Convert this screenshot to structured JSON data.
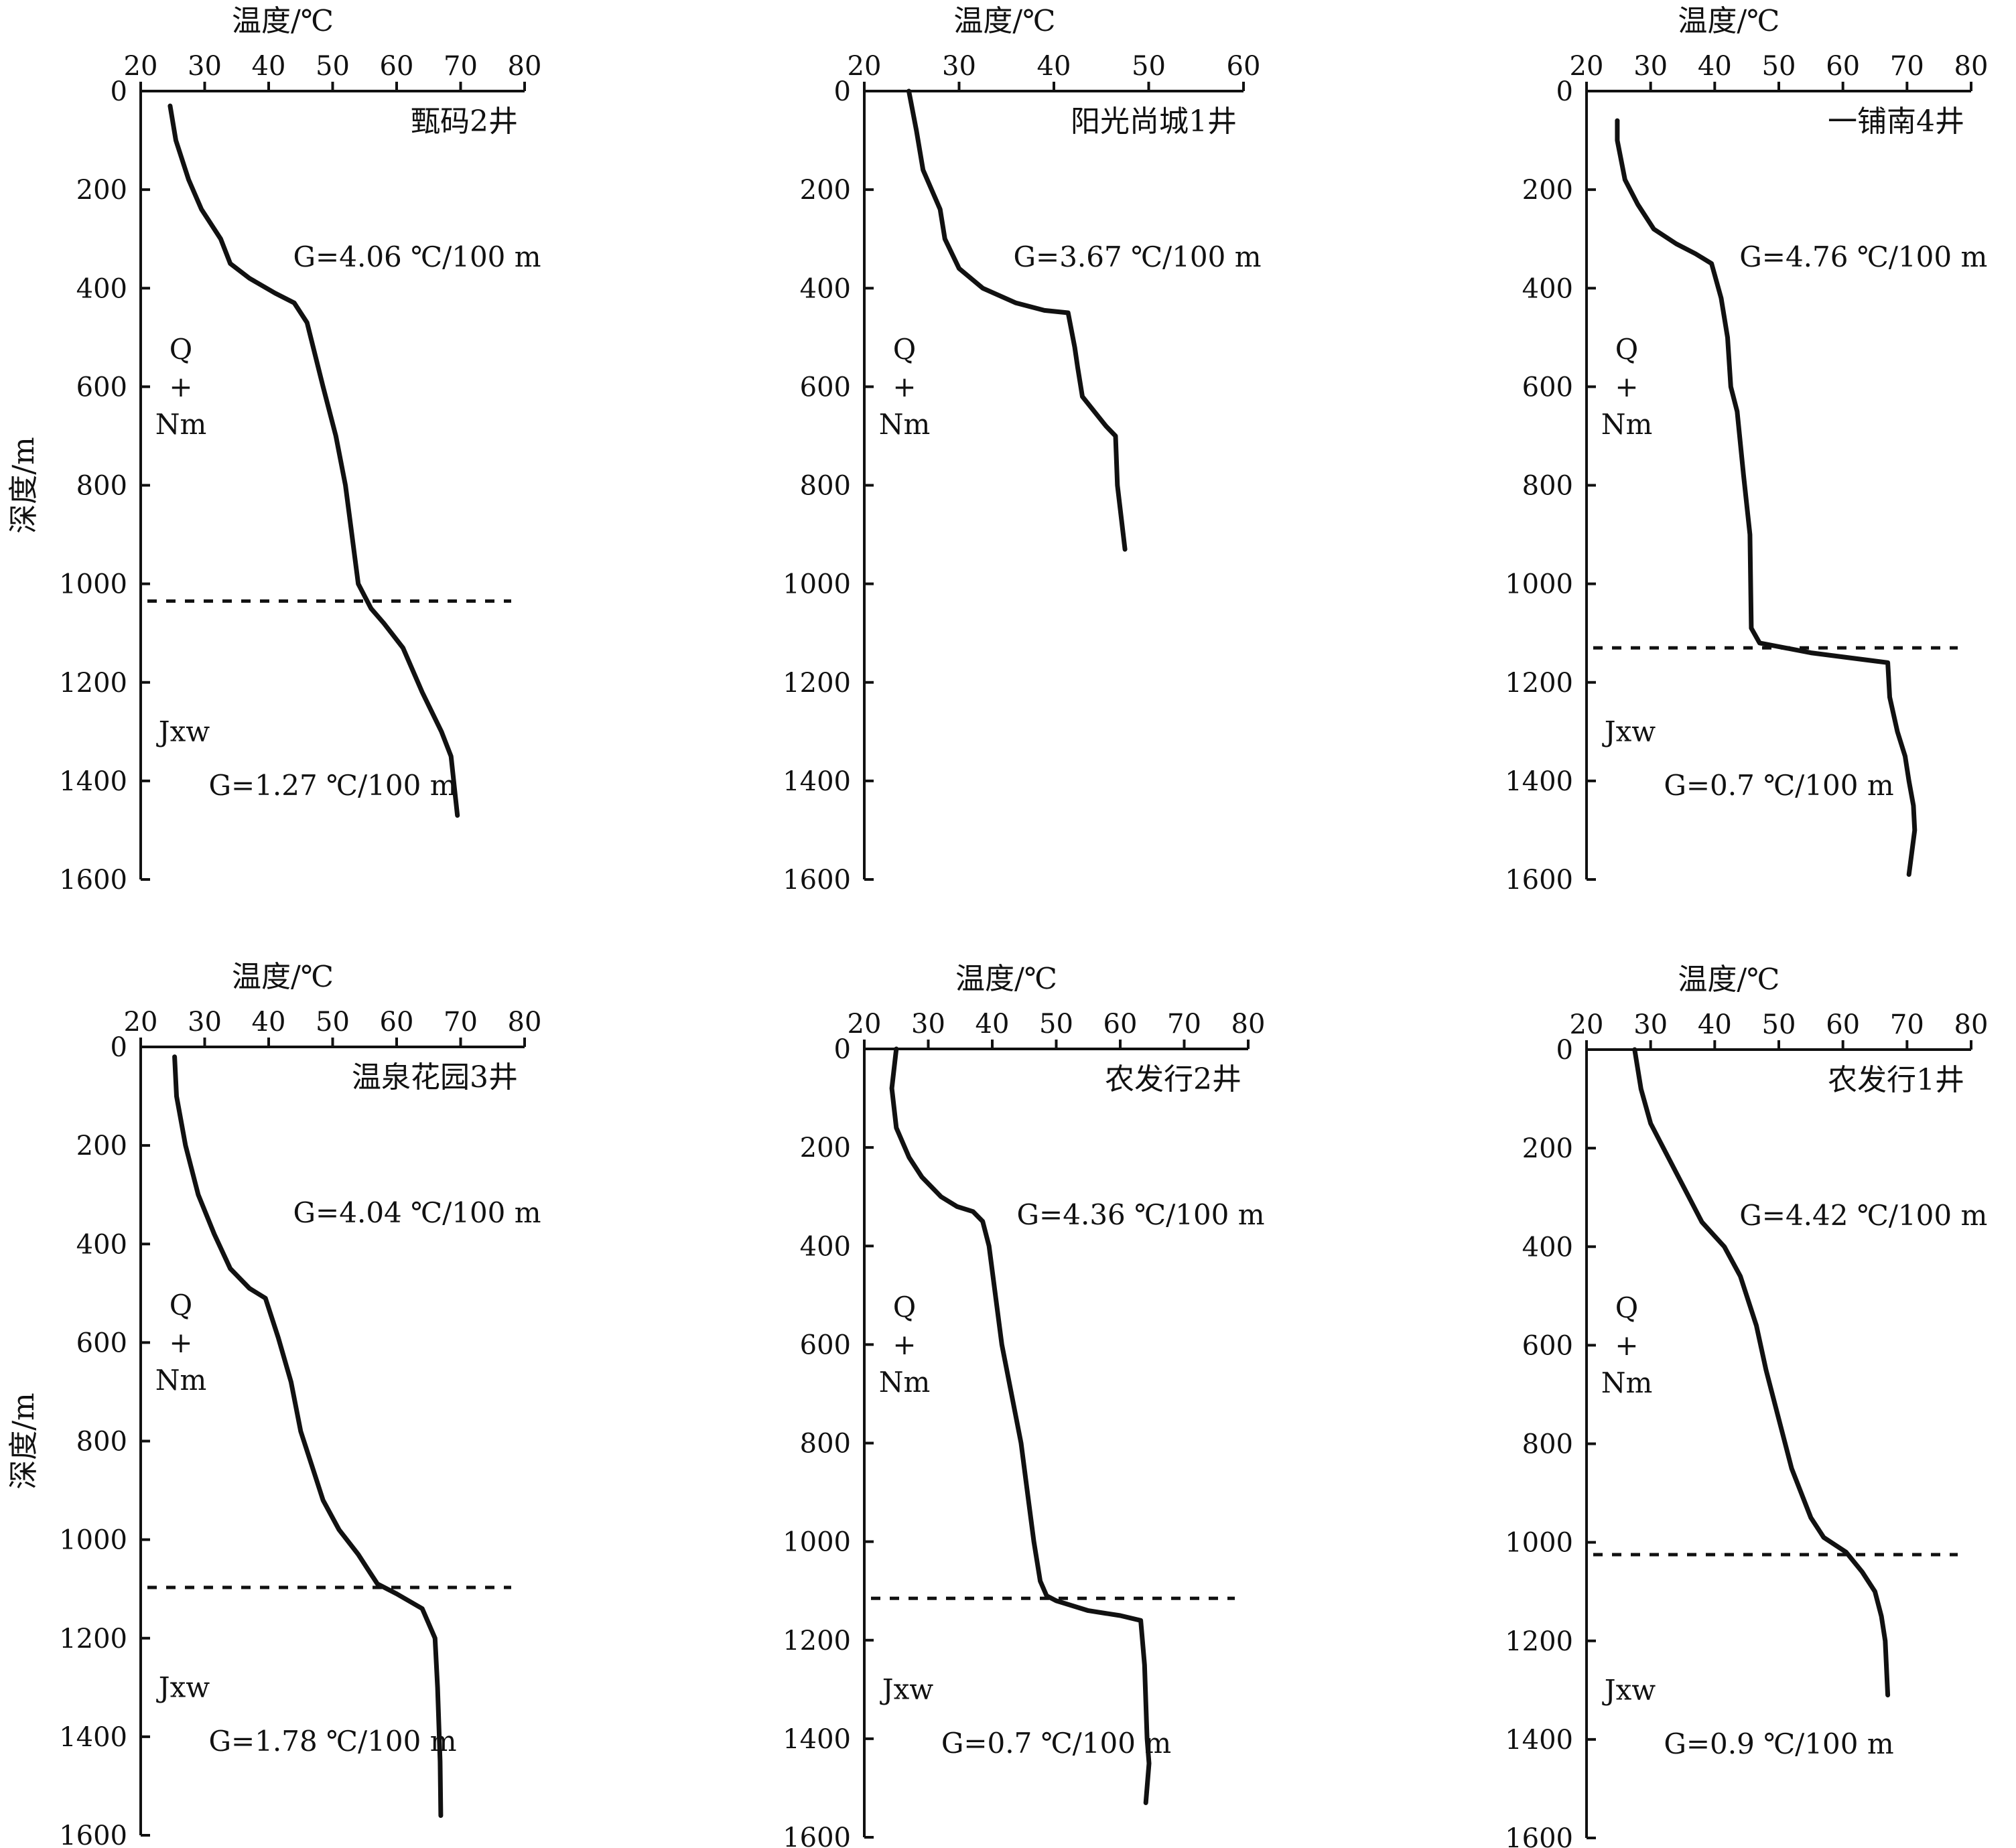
{
  "colors": {
    "ink": "#111111",
    "background": "#ffffff"
  },
  "chart_data": [
    {
      "type": "line",
      "title": "甄码2井",
      "xlabel": "温度/℃",
      "ylabel": "深度/m",
      "xlim": [
        20,
        80
      ],
      "ylim": [
        0,
        1600
      ],
      "x_ticks": [
        "20",
        "30",
        "40",
        "50",
        "60",
        "70",
        "80"
      ],
      "y_ticks": [
        "0",
        "200",
        "400",
        "600",
        "800",
        "1000",
        "1200",
        "1400",
        "1600"
      ],
      "grid": false,
      "x": [
        24.6,
        25.5,
        27.5,
        29.5,
        32.5,
        34,
        37,
        41,
        44,
        46,
        48.5,
        50.5,
        52,
        53,
        54,
        56,
        58,
        61,
        64,
        67,
        68.5,
        69.5
      ],
      "y": [
        30,
        100,
        180,
        240,
        300,
        350,
        380,
        410,
        430,
        470,
        600,
        700,
        800,
        900,
        1000,
        1050,
        1080,
        1130,
        1220,
        1300,
        1350,
        1470
      ],
      "boundary_depth": 1035,
      "upper_unit": [
        "Q",
        "+",
        "Nm"
      ],
      "lower_unit": "Jxw",
      "upper_gradient": "G=4.06 ℃/100 m",
      "lower_gradient": "G=1.27 ℃/100 m"
    },
    {
      "type": "line",
      "title": "阳光尚城1井",
      "xlabel": "温度/℃",
      "ylabel": "",
      "xlim": [
        20,
        60
      ],
      "ylim": [
        0,
        1600
      ],
      "x_ticks": [
        "20",
        "30",
        "40",
        "50",
        "60"
      ],
      "y_ticks": [
        "0",
        "200",
        "400",
        "600",
        "800",
        "1000",
        "1200",
        "1400",
        "1600"
      ],
      "grid": false,
      "x": [
        24.7,
        25.5,
        26.2,
        28,
        28.5,
        30,
        32.5,
        36,
        39,
        41.5,
        42.2,
        42.5,
        43,
        45.5,
        46.5,
        46.7,
        47.5
      ],
      "y": [
        0,
        80,
        160,
        240,
        300,
        360,
        400,
        430,
        445,
        450,
        520,
        560,
        620,
        680,
        700,
        800,
        930
      ],
      "boundary_depth": null,
      "upper_unit": [
        "Q",
        "+",
        "Nm"
      ],
      "lower_unit": "",
      "upper_gradient": "G=3.67 ℃/100 m",
      "lower_gradient": ""
    },
    {
      "type": "line",
      "title": "一铺南4井",
      "xlabel": "温度/℃",
      "ylabel": "",
      "xlim": [
        20,
        80
      ],
      "ylim": [
        0,
        1600
      ],
      "x_ticks": [
        "20",
        "30",
        "40",
        "50",
        "60",
        "70",
        "80"
      ],
      "y_ticks": [
        "0",
        "200",
        "400",
        "600",
        "800",
        "1000",
        "1200",
        "1400",
        "1600"
      ],
      "grid": false,
      "x": [
        24.8,
        24.8,
        26,
        28,
        30.5,
        34,
        37,
        39.5,
        41,
        42,
        42.5,
        43.5,
        44.5,
        45.5,
        45.7,
        47,
        55,
        61,
        67,
        67.3,
        68.5,
        69.7,
        70.3,
        71,
        71.2,
        70.3
      ],
      "y": [
        60,
        100,
        180,
        230,
        280,
        310,
        330,
        350,
        420,
        500,
        600,
        650,
        780,
        900,
        1090,
        1120,
        1140,
        1150,
        1160,
        1230,
        1300,
        1350,
        1400,
        1450,
        1500,
        1590
      ],
      "boundary_depth": 1130,
      "upper_unit": [
        "Q",
        "+",
        "Nm"
      ],
      "lower_unit": "Jxw",
      "upper_gradient": "G=4.76 ℃/100 m",
      "lower_gradient": "G=0.7 ℃/100 m"
    },
    {
      "type": "line",
      "title": "温泉花园3井",
      "xlabel": "温度/℃",
      "ylabel": "深度/m",
      "xlim": [
        20,
        80
      ],
      "ylim": [
        0,
        1600
      ],
      "x_ticks": [
        "20",
        "30",
        "40",
        "50",
        "60",
        "70",
        "80"
      ],
      "y_ticks": [
        "0",
        "200",
        "400",
        "600",
        "800",
        "1000",
        "1200",
        "1400",
        "1600"
      ],
      "grid": false,
      "x": [
        25.3,
        25.6,
        27,
        29,
        31.5,
        34,
        37,
        39.5,
        41.5,
        43.5,
        45,
        47,
        48.5,
        51,
        54,
        55.5,
        57,
        60,
        64,
        66,
        66.4,
        66.8,
        66.9
      ],
      "y": [
        20,
        100,
        200,
        300,
        380,
        450,
        490,
        510,
        590,
        680,
        780,
        860,
        920,
        980,
        1030,
        1060,
        1090,
        1110,
        1140,
        1200,
        1300,
        1450,
        1560
      ],
      "boundary_depth": 1097,
      "upper_unit": [
        "Q",
        "+",
        "Nm"
      ],
      "lower_unit": "Jxw",
      "upper_gradient": "G=4.04 ℃/100 m",
      "lower_gradient": "G=1.78 ℃/100 m"
    },
    {
      "type": "line",
      "title": "农发行2井",
      "xlabel": "温度/℃",
      "ylabel": "",
      "xlim": [
        20,
        80
      ],
      "ylim": [
        0,
        1600
      ],
      "x_ticks": [
        "20",
        "30",
        "40",
        "50",
        "60",
        "70",
        "80"
      ],
      "y_ticks": [
        "0",
        "200",
        "400",
        "600",
        "800",
        "1000",
        "1200",
        "1400",
        "1600"
      ],
      "grid": false,
      "x": [
        25,
        24.3,
        25,
        27,
        29,
        32,
        34.5,
        37,
        38.5,
        39.5,
        41.5,
        44.5,
        45.5,
        46.5,
        47.5,
        48.5,
        50,
        55,
        60,
        63.2,
        63.8,
        64.2,
        64.5,
        64
      ],
      "y": [
        0,
        80,
        160,
        220,
        260,
        300,
        320,
        330,
        350,
        400,
        600,
        800,
        900,
        1000,
        1080,
        1110,
        1120,
        1140,
        1150,
        1160,
        1250,
        1400,
        1450,
        1530
      ],
      "boundary_depth": 1115,
      "upper_unit": [
        "Q",
        "+",
        "Nm"
      ],
      "lower_unit": "Jxw",
      "upper_gradient": "G=4.36 ℃/100 m",
      "lower_gradient": "G=0.7 ℃/100 m"
    },
    {
      "type": "line",
      "title": "农发行1井",
      "xlabel": "温度/℃",
      "ylabel": "",
      "xlim": [
        20,
        80
      ],
      "ylim": [
        0,
        1600
      ],
      "x_ticks": [
        "20",
        "30",
        "40",
        "50",
        "60",
        "70",
        "80"
      ],
      "y_ticks": [
        "0",
        "200",
        "400",
        "600",
        "800",
        "1000",
        "1200",
        "1400",
        "1600"
      ],
      "grid": false,
      "x": [
        27.5,
        28.5,
        30,
        32,
        34,
        36,
        38,
        41.5,
        44,
        46.5,
        48,
        50,
        52,
        55,
        57,
        60.5,
        63,
        65,
        66,
        66.6,
        67
      ],
      "y": [
        0,
        80,
        150,
        200,
        250,
        300,
        350,
        400,
        460,
        560,
        650,
        750,
        850,
        950,
        990,
        1020,
        1060,
        1100,
        1150,
        1200,
        1310
      ],
      "boundary_depth": 1025,
      "upper_unit": [
        "Q",
        "+",
        "Nm"
      ],
      "lower_unit": "Jxw",
      "upper_gradient": "G=4.42 ℃/100 m",
      "lower_gradient": "G=0.9 ℃/100 m"
    }
  ]
}
